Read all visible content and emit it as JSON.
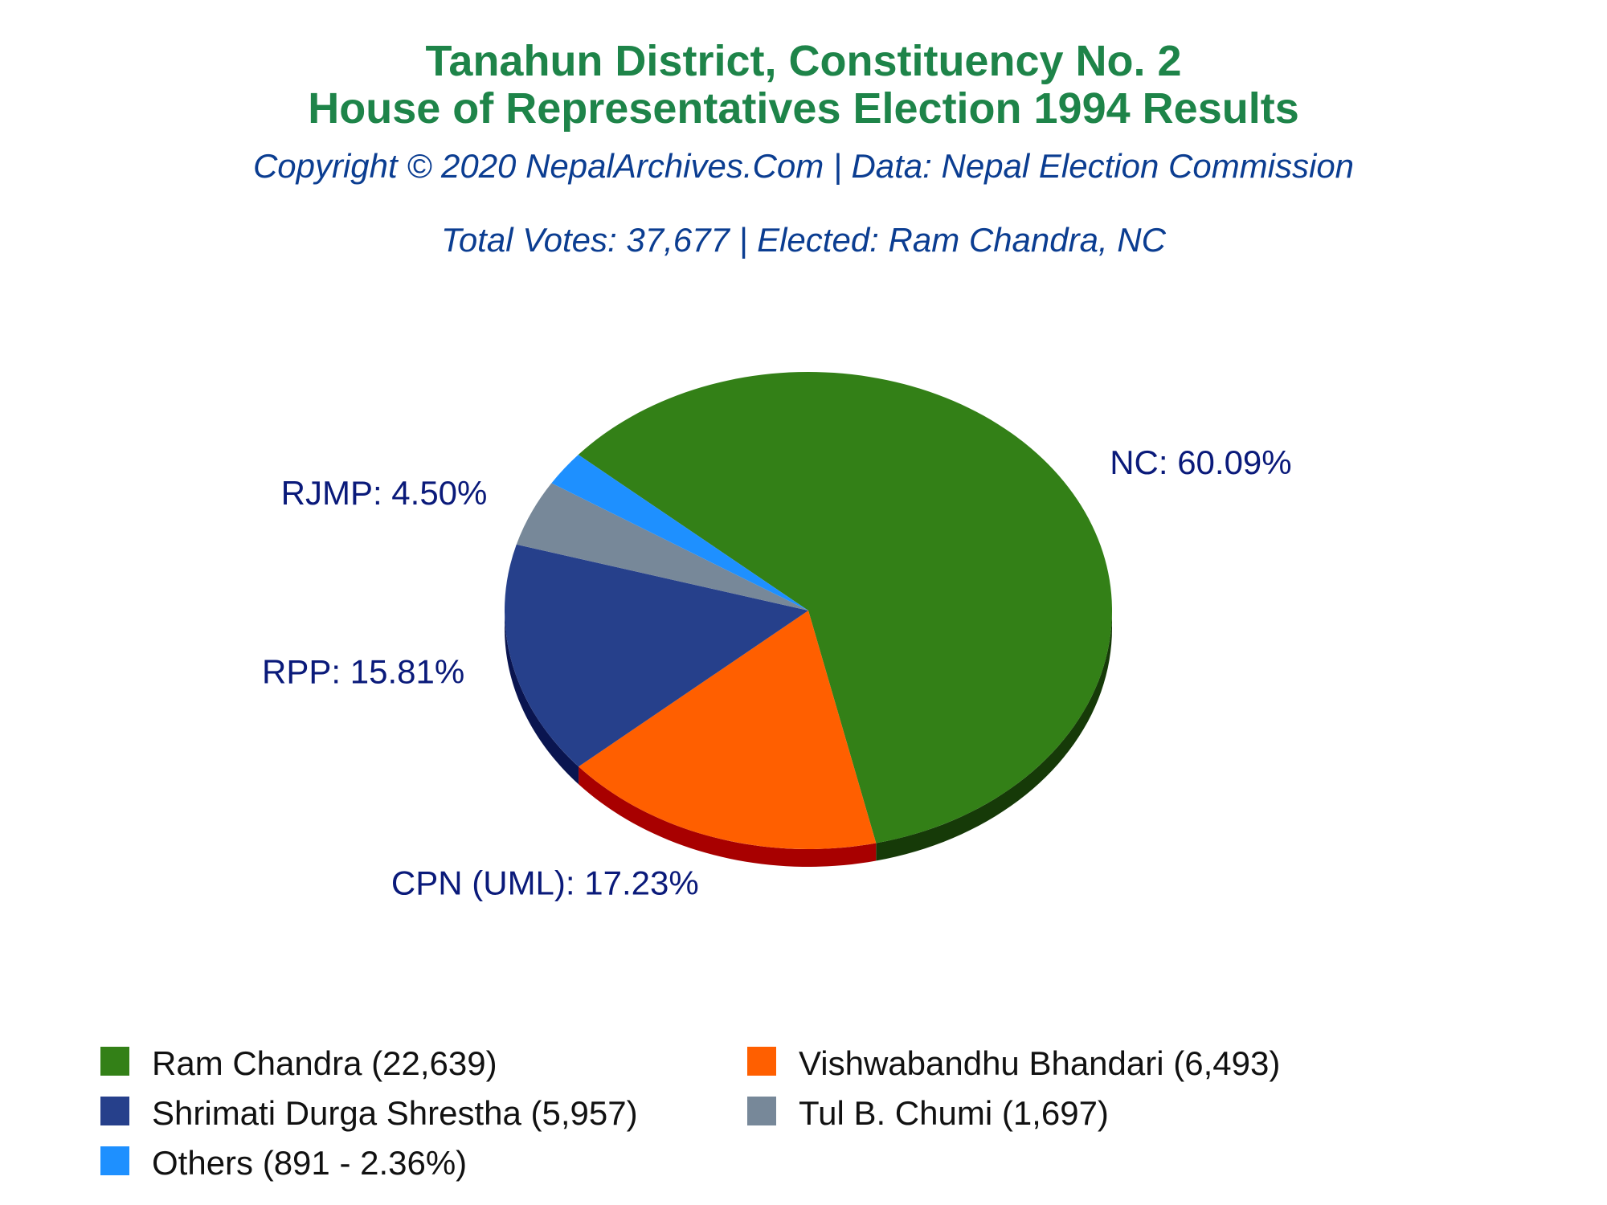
{
  "chart_data": {
    "type": "pie",
    "title": [
      "Tanahun District, Constituency No. 2",
      "House of Representatives Election 1994 Results"
    ],
    "subtitle": "Copyright © 2020 NepalArchives.Com | Data: Nepal Election Commission",
    "summary": "Total Votes: 37,677 | Elected: Ram Chandra, NC",
    "slices": [
      {
        "party": "NC",
        "candidate": "Ram Chandra",
        "votes": 22639,
        "percent": 60.09,
        "label": "NC: 60.09%",
        "legend": "Ram Chandra (22,639)",
        "color": "#338017",
        "side_color": "#163a08"
      },
      {
        "party": "CPN (UML)",
        "candidate": "Vishwabandhu Bhandari",
        "votes": 6493,
        "percent": 17.23,
        "label": "CPN (UML): 17.23%",
        "legend": "Vishwabandhu Bhandari (6,493)",
        "color": "#ff5f00",
        "side_color": "#a80000"
      },
      {
        "party": "RPP",
        "candidate": "Shrimati Durga Shrestha",
        "votes": 5957,
        "percent": 15.81,
        "label": "RPP: 15.81%",
        "legend": "Shrimati Durga Shrestha (5,957)",
        "color": "#26408b",
        "side_color": "#0a1550"
      },
      {
        "party": "RJMP",
        "candidate": "Tul B. Chumi",
        "votes": 1697,
        "percent": 4.5,
        "label": "RJMP: 4.50%",
        "legend": "Tul B. Chumi (1,697)",
        "color": "#778899",
        "side_color": "#3e4a55"
      },
      {
        "party": "Others",
        "candidate": "Others",
        "votes": 891,
        "percent": 2.36,
        "label": "",
        "legend": "Others (891 - 2.36%)",
        "color": "#1e90ff",
        "side_color": "#0b4f99"
      }
    ],
    "legend_order": [
      0,
      1,
      2,
      3,
      4
    ],
    "legend_placement": "bottom"
  }
}
